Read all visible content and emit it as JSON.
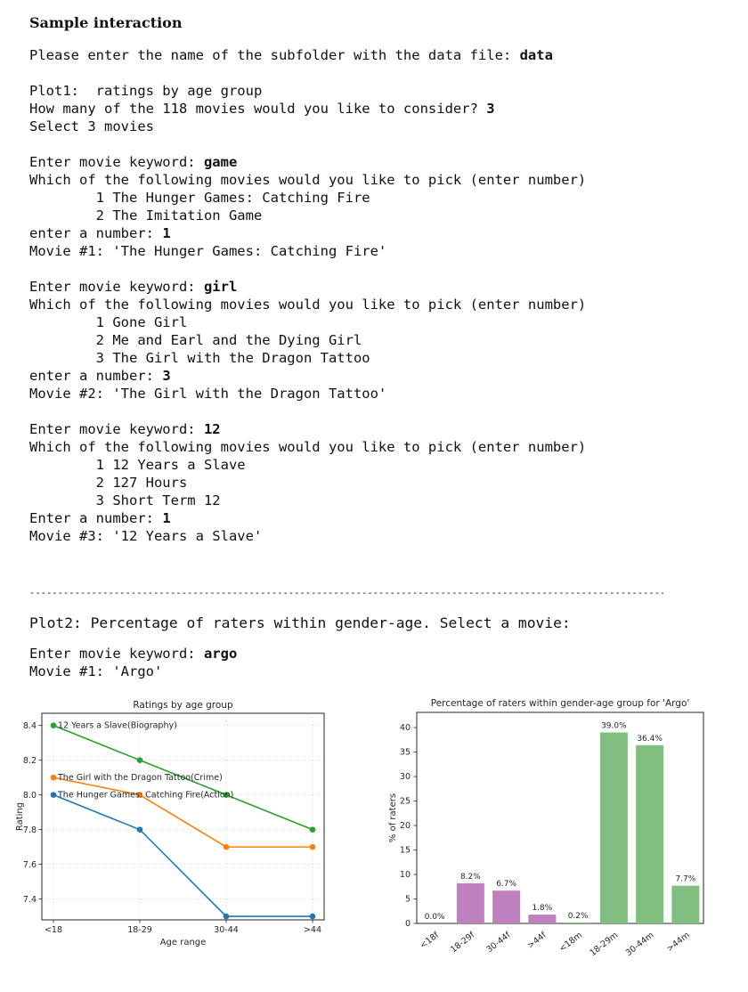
{
  "page": {
    "title": "Sample interaction",
    "background": "#ffffff"
  },
  "terminal": {
    "lines": [
      [
        {
          "t": "Please enter the name of the subfolder with the data file: "
        },
        {
          "t": "data",
          "b": true
        }
      ],
      [],
      [
        {
          "t": "Plot1:  ratings by age group"
        }
      ],
      [
        {
          "t": "How many of the 118 movies would you like to consider? "
        },
        {
          "t": "3",
          "b": true
        }
      ],
      [
        {
          "t": "Select 3 movies"
        }
      ],
      [],
      [
        {
          "t": "Enter movie keyword: "
        },
        {
          "t": "game",
          "b": true
        }
      ],
      [
        {
          "t": "Which of the following movies would you like to pick (enter number)"
        }
      ],
      [
        {
          "t": "        1 The Hunger Games: Catching Fire"
        }
      ],
      [
        {
          "t": "        2 The Imitation Game"
        }
      ],
      [
        {
          "t": "enter a number: "
        },
        {
          "t": "1",
          "b": true
        }
      ],
      [
        {
          "t": "Movie #1: 'The Hunger Games: Catching Fire'"
        }
      ],
      [],
      [
        {
          "t": "Enter movie keyword: "
        },
        {
          "t": "girl",
          "b": true
        }
      ],
      [
        {
          "t": "Which of the following movies would you like to pick (enter number)"
        }
      ],
      [
        {
          "t": "        1 Gone Girl"
        }
      ],
      [
        {
          "t": "        2 Me and Earl and the Dying Girl"
        }
      ],
      [
        {
          "t": "        3 The Girl with the Dragon Tattoo"
        }
      ],
      [
        {
          "t": "enter a number: "
        },
        {
          "t": "3",
          "b": true
        }
      ],
      [
        {
          "t": "Movie #2: 'The Girl with the Dragon Tattoo'"
        }
      ],
      [],
      [
        {
          "t": "Enter movie keyword: "
        },
        {
          "t": "12",
          "b": true
        }
      ],
      [
        {
          "t": "Which of the following movies would you like to pick (enter number)"
        }
      ],
      [
        {
          "t": "        1 12 Years a Slave"
        }
      ],
      [
        {
          "t": "        2 127 Hours"
        }
      ],
      [
        {
          "t": "        3 Short Term 12"
        }
      ],
      [
        {
          "t": "Enter a number: "
        },
        {
          "t": "1",
          "b": true
        }
      ],
      [
        {
          "t": "Movie #3: '12 Years a Slave'"
        }
      ]
    ]
  },
  "separator": "------------------------------------------------------------------------------------------------------------------------",
  "plot2": {
    "heading": "Plot2: Percentage of raters within gender-age. Select a movie:",
    "lines": [
      [
        {
          "t": "Enter movie keyword: "
        },
        {
          "t": "argo",
          "b": true
        }
      ],
      [
        {
          "t": "Movie #1: 'Argo'"
        }
      ]
    ]
  },
  "chart_data": [
    {
      "type": "line",
      "title": "Ratings by age group",
      "xlabel": "Age range",
      "ylabel": "Rating",
      "categories": [
        "<18",
        "18-29",
        "30-44",
        ">44"
      ],
      "yticks": [
        7.4,
        7.6,
        7.8,
        8.0,
        8.2,
        8.4
      ],
      "ylim": [
        7.28,
        8.47
      ],
      "grid": "dotted",
      "legend_position": "inline-annotations-at-first-point",
      "series": [
        {
          "name": "The Hunger Games: Catching Fire(Action)",
          "color": "#1f77b4",
          "values": [
            8.0,
            7.8,
            7.3,
            7.3
          ]
        },
        {
          "name": "The Girl with the Dragon Tattoo(Crime)",
          "color": "#ff7f0e",
          "values": [
            8.1,
            8.0,
            7.7,
            7.7
          ]
        },
        {
          "name": "12 Years a Slave(Biography)",
          "color": "#2ca02c",
          "values": [
            8.4,
            8.2,
            8.0,
            7.8
          ]
        }
      ]
    },
    {
      "type": "bar",
      "title": "Percentage of raters within gender-age group for 'Argo'",
      "xlabel": "",
      "ylabel": "% of raters",
      "categories": [
        "<18f",
        "18-29f",
        "30-44f",
        ">44f",
        "<18m",
        "18-29m",
        "30-44m",
        ">44m"
      ],
      "values": [
        0.0,
        8.2,
        6.7,
        1.8,
        0.2,
        39.0,
        36.4,
        7.7
      ],
      "bar_labels": [
        "0.0%",
        "8.2%",
        "6.7%",
        "1.8%",
        "0.2%",
        "39.0%",
        "36.4%",
        "7.7%"
      ],
      "bar_colors": [
        "#bf80bf",
        "#bf80bf",
        "#bf80bf",
        "#bf80bf",
        "#80bf80",
        "#80bf80",
        "#80bf80",
        "#80bf80"
      ],
      "group_colors": {
        "female": "#bf80bf",
        "male": "#80bf80"
      },
      "yticks": [
        0,
        5,
        10,
        15,
        20,
        25,
        30,
        35,
        40
      ],
      "ylim": [
        0,
        43.1
      ],
      "grid": "none",
      "tick_label_rotation": -38
    }
  ]
}
